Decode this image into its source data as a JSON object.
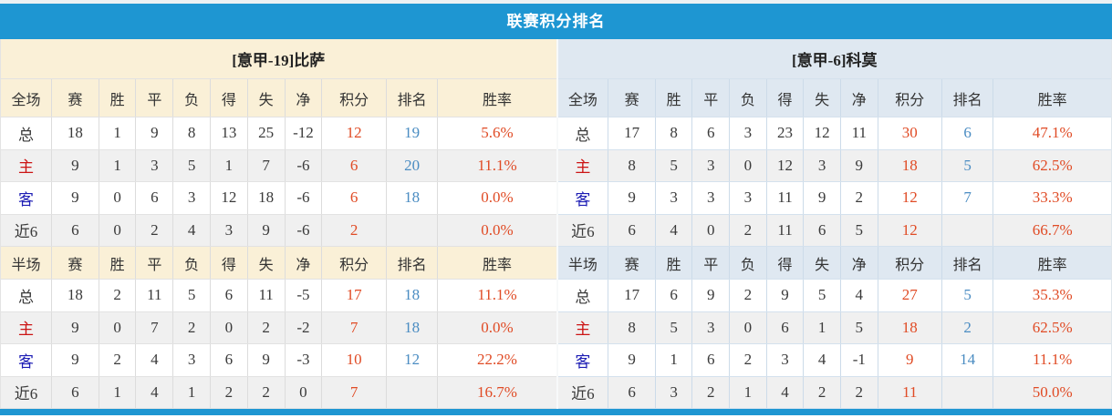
{
  "page": {
    "title": "联赛积分排名"
  },
  "colors": {
    "accent_blue": "#1e96d2",
    "left_panel_bg": "#faf0d7",
    "right_panel_bg": "#dfe8f1",
    "stripe_bg": "#f0f0f0",
    "points_color": "#e04b25",
    "rank_color": "#4a8cc2",
    "home_label_color": "#cc1414",
    "away_label_color": "#1c1cb4",
    "text_color": "#3a3a3a"
  },
  "column_roles": [
    "scope",
    "num",
    "num",
    "num",
    "num",
    "num",
    "num",
    "num",
    "points",
    "rank",
    "rate"
  ],
  "panels": [
    {
      "side": "left",
      "theme": "cream",
      "team_title": "[意甲-19]比萨",
      "sections": [
        {
          "scope_label": "全场",
          "columns": [
            "赛",
            "胜",
            "平",
            "负",
            "得",
            "失",
            "净",
            "积分",
            "排名",
            "胜率"
          ],
          "rows": [
            {
              "label": "总",
              "label_style": "plain",
              "cells": [
                "18",
                "1",
                "9",
                "8",
                "13",
                "25",
                "-12",
                "12",
                "19",
                "5.6%"
              ]
            },
            {
              "label": "主",
              "label_style": "home",
              "cells": [
                "9",
                "1",
                "3",
                "5",
                "1",
                "7",
                "-6",
                "6",
                "20",
                "11.1%"
              ]
            },
            {
              "label": "客",
              "label_style": "away",
              "cells": [
                "9",
                "0",
                "6",
                "3",
                "12",
                "18",
                "-6",
                "6",
                "18",
                "0.0%"
              ]
            },
            {
              "label": "近6",
              "label_style": "plain",
              "cells": [
                "6",
                "0",
                "2",
                "4",
                "3",
                "9",
                "-6",
                "2",
                "",
                "0.0%"
              ]
            }
          ]
        },
        {
          "scope_label": "半场",
          "columns": [
            "赛",
            "胜",
            "平",
            "负",
            "得",
            "失",
            "净",
            "积分",
            "排名",
            "胜率"
          ],
          "rows": [
            {
              "label": "总",
              "label_style": "plain",
              "cells": [
                "18",
                "2",
                "11",
                "5",
                "6",
                "11",
                "-5",
                "17",
                "18",
                "11.1%"
              ]
            },
            {
              "label": "主",
              "label_style": "home",
              "cells": [
                "9",
                "0",
                "7",
                "2",
                "0",
                "2",
                "-2",
                "7",
                "18",
                "0.0%"
              ]
            },
            {
              "label": "客",
              "label_style": "away",
              "cells": [
                "9",
                "2",
                "4",
                "3",
                "6",
                "9",
                "-3",
                "10",
                "12",
                "22.2%"
              ]
            },
            {
              "label": "近6",
              "label_style": "plain",
              "cells": [
                "6",
                "1",
                "4",
                "1",
                "2",
                "2",
                "0",
                "7",
                "",
                "16.7%"
              ]
            }
          ]
        }
      ]
    },
    {
      "side": "right",
      "theme": "blue",
      "team_title": "[意甲-6]科莫",
      "sections": [
        {
          "scope_label": "全场",
          "columns": [
            "赛",
            "胜",
            "平",
            "负",
            "得",
            "失",
            "净",
            "积分",
            "排名",
            "胜率"
          ],
          "rows": [
            {
              "label": "总",
              "label_style": "plain",
              "cells": [
                "17",
                "8",
                "6",
                "3",
                "23",
                "12",
                "11",
                "30",
                "6",
                "47.1%"
              ]
            },
            {
              "label": "主",
              "label_style": "home",
              "cells": [
                "8",
                "5",
                "3",
                "0",
                "12",
                "3",
                "9",
                "18",
                "5",
                "62.5%"
              ]
            },
            {
              "label": "客",
              "label_style": "away",
              "cells": [
                "9",
                "3",
                "3",
                "3",
                "11",
                "9",
                "2",
                "12",
                "7",
                "33.3%"
              ]
            },
            {
              "label": "近6",
              "label_style": "plain",
              "cells": [
                "6",
                "4",
                "0",
                "2",
                "11",
                "6",
                "5",
                "12",
                "",
                "66.7%"
              ]
            }
          ]
        },
        {
          "scope_label": "半场",
          "columns": [
            "赛",
            "胜",
            "平",
            "负",
            "得",
            "失",
            "净",
            "积分",
            "排名",
            "胜率"
          ],
          "rows": [
            {
              "label": "总",
              "label_style": "plain",
              "cells": [
                "17",
                "6",
                "9",
                "2",
                "9",
                "5",
                "4",
                "27",
                "5",
                "35.3%"
              ]
            },
            {
              "label": "主",
              "label_style": "home",
              "cells": [
                "8",
                "5",
                "3",
                "0",
                "6",
                "1",
                "5",
                "18",
                "2",
                "62.5%"
              ]
            },
            {
              "label": "客",
              "label_style": "away",
              "cells": [
                "9",
                "1",
                "6",
                "2",
                "3",
                "4",
                "-1",
                "9",
                "14",
                "11.1%"
              ]
            },
            {
              "label": "近6",
              "label_style": "plain",
              "cells": [
                "6",
                "3",
                "2",
                "1",
                "4",
                "2",
                "2",
                "11",
                "",
                "50.0%"
              ]
            }
          ]
        }
      ]
    }
  ]
}
